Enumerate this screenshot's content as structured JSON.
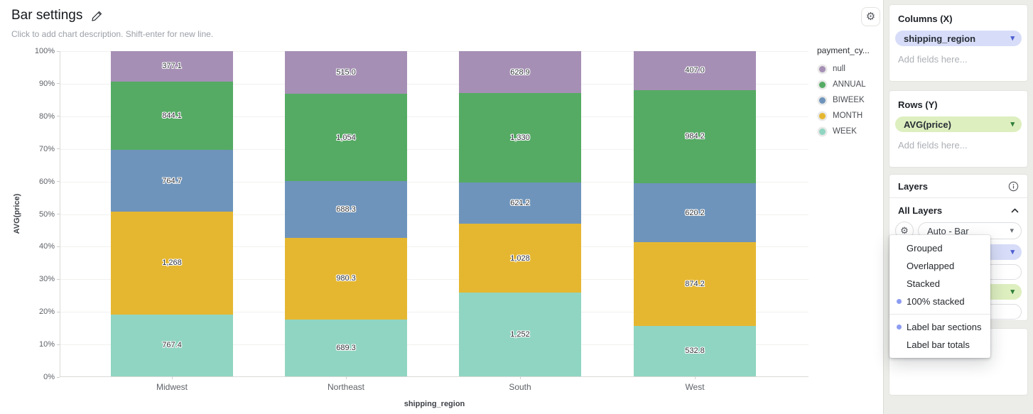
{
  "header": {
    "title": "Bar settings",
    "subtitle": "Click to add chart description. Shift-enter for new line."
  },
  "chart_data": {
    "type": "bar",
    "stack_mode": "100% stacked",
    "title": "Bar settings",
    "xlabel": "shipping_region",
    "ylabel": "AVG(price)",
    "categories": [
      "Midwest",
      "Northeast",
      "South",
      "West"
    ],
    "series": [
      {
        "name": "WEEK",
        "color": "#90d5c1",
        "values": [
          767.4,
          689.3,
          1252,
          532.8
        ],
        "labels": [
          "767.4",
          "689.3",
          "1,252",
          "532.8"
        ]
      },
      {
        "name": "MONTH",
        "color": "#e5b731",
        "values": [
          1268,
          980.3,
          1028,
          874.2
        ],
        "labels": [
          "1,268",
          "980.3",
          "1,028",
          "874.2"
        ]
      },
      {
        "name": "BIWEEK",
        "color": "#6e94bb",
        "values": [
          764.7,
          688.3,
          621.2,
          620.2
        ],
        "labels": [
          "764.7",
          "688.3",
          "621.2",
          "620.2"
        ]
      },
      {
        "name": "ANNUAL",
        "color": "#55ab64",
        "values": [
          844.1,
          1054,
          1330,
          984.2
        ],
        "labels": [
          "844.1",
          "1,054",
          "1,330",
          "984.2"
        ]
      },
      {
        "name": "null",
        "color": "#a68fb5",
        "values": [
          377.1,
          515.0,
          628.9,
          407.0
        ],
        "labels": [
          "377.1",
          "515.0",
          "628.9",
          "407.0"
        ]
      }
    ],
    "y_ticks": [
      "0%",
      "10%",
      "20%",
      "30%",
      "40%",
      "50%",
      "60%",
      "70%",
      "80%",
      "90%",
      "100%"
    ],
    "ylim": [
      "0%",
      "100%"
    ],
    "grid": true,
    "legend": {
      "position": "right",
      "title": "payment_cy...",
      "items": [
        {
          "label": "null",
          "color": "#a68fb5"
        },
        {
          "label": "ANNUAL",
          "color": "#55ab64"
        },
        {
          "label": "BIWEEK",
          "color": "#6e94bb"
        },
        {
          "label": "MONTH",
          "color": "#e5b731"
        },
        {
          "label": "WEEK",
          "color": "#90d5c1"
        }
      ]
    }
  },
  "sidebar": {
    "columns": {
      "title": "Columns (X)",
      "field": "shipping_region",
      "placeholder": "Add fields here..."
    },
    "rows": {
      "title": "Rows (Y)",
      "field": "AVG(price)",
      "placeholder": "Add fields here..."
    },
    "layers": {
      "title": "Layers",
      "group_label": "All Layers",
      "type_value": "Auto - Bar"
    },
    "extra": {
      "placeholder": "Add fields here..."
    }
  },
  "layer_menu": {
    "options": [
      {
        "label": "Grouped",
        "selected": false
      },
      {
        "label": "Overlapped",
        "selected": false
      },
      {
        "label": "Stacked",
        "selected": false
      },
      {
        "label": "100% stacked",
        "selected": true
      }
    ],
    "toggles": [
      {
        "label": "Label bar sections",
        "selected": true
      },
      {
        "label": "Label bar totals",
        "selected": false
      }
    ]
  },
  "colors": {
    "pill_blue_bg": "#d7ddf8",
    "pill_green_bg": "#ddefbf",
    "selected_dot": "#8c9cf2",
    "sidebar_bg": "#ecede9"
  }
}
